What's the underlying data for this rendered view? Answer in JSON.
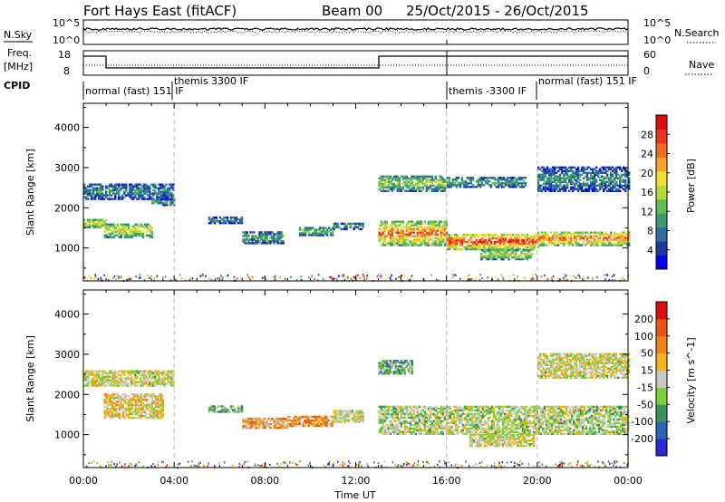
{
  "header": {
    "station": "Fort Hays East (fitACF)",
    "beam": "Beam 00",
    "dates": "25/Oct/2015 - 26/Oct/2015"
  },
  "panels": {
    "nsky": {
      "label": "N.Sky",
      "left_ticks": [
        "10^5",
        "10^0"
      ],
      "right_ticks": [
        "10^5",
        "10^0"
      ],
      "right_label": "N.Search"
    },
    "freq": {
      "label": "Freq.",
      "unit": "[MHz]",
      "left_ticks": [
        "18",
        "8"
      ],
      "right_ticks": [
        "60",
        "0"
      ],
      "right_label": "Nave"
    },
    "cpid": {
      "label": "CPID",
      "segments": [
        "normal (fast) 151 IF",
        "themis 3300 IF",
        "themis -3300 IF",
        "normal (fast) 151 IF"
      ]
    }
  },
  "chart_data": [
    {
      "type": "heatmap",
      "name": "power",
      "ylabel": "Slant Range [km]",
      "xlabel": "",
      "x_ticks": [
        "00:00",
        "04:00",
        "08:00",
        "12:00",
        "16:00",
        "20:00",
        "00:00"
      ],
      "x_range_hours": [
        0,
        24
      ],
      "y_ticks": [
        1000,
        2000,
        3000,
        4000
      ],
      "ylim": [
        180,
        4600
      ],
      "dashed_gridlines_hours": [
        4,
        16,
        20
      ],
      "colorbar": {
        "label": "Power [dB]",
        "ticks": [
          "4",
          "8",
          "12",
          "16",
          "20",
          "24",
          "28"
        ],
        "colors": [
          "#0000ff",
          "#1e3aa0",
          "#2d6e9e",
          "#3a9a72",
          "#5fbf50",
          "#b7d740",
          "#f2df30",
          "#f6a72a",
          "#ef6a24",
          "#e8341c",
          "#dd0d0d"
        ]
      },
      "echo_bands": [
        {
          "t0": 0.0,
          "t1": 1.0,
          "r0": 1500,
          "r1": 1700,
          "level": 0.65
        },
        {
          "t0": 0.9,
          "t1": 3.0,
          "r0": 1250,
          "r1": 1600,
          "level": 0.6
        },
        {
          "t0": 3.0,
          "t1": 4.0,
          "r0": 2050,
          "r1": 2200,
          "level": 0.4
        },
        {
          "t0": 0.0,
          "t1": 4.0,
          "r0": 2200,
          "r1": 2600,
          "level": 0.3
        },
        {
          "t0": 5.5,
          "t1": 7.0,
          "r0": 1600,
          "r1": 1750,
          "level": 0.3
        },
        {
          "t0": 7.0,
          "t1": 8.8,
          "r0": 1100,
          "r1": 1400,
          "level": 0.35
        },
        {
          "t0": 9.5,
          "t1": 11.0,
          "r0": 1300,
          "r1": 1500,
          "level": 0.45
        },
        {
          "t0": 11.0,
          "t1": 12.3,
          "r0": 1450,
          "r1": 1600,
          "level": 0.35
        },
        {
          "t0": 13.0,
          "t1": 16.0,
          "r0": 1050,
          "r1": 1650,
          "level": 0.8
        },
        {
          "t0": 16.0,
          "t1": 20.0,
          "r0": 950,
          "r1": 1350,
          "level": 0.9
        },
        {
          "t0": 17.5,
          "t1": 19.8,
          "r0": 700,
          "r1": 950,
          "level": 0.55
        },
        {
          "t0": 20.0,
          "t1": 24.0,
          "r0": 1050,
          "r1": 1400,
          "level": 0.8
        },
        {
          "t0": 13.0,
          "t1": 16.0,
          "r0": 2400,
          "r1": 2800,
          "level": 0.5
        },
        {
          "t0": 16.0,
          "t1": 19.5,
          "r0": 2500,
          "r1": 2750,
          "level": 0.35
        },
        {
          "t0": 20.0,
          "t1": 24.0,
          "r0": 2400,
          "r1": 3000,
          "level": 0.3
        }
      ]
    },
    {
      "type": "heatmap",
      "name": "velocity",
      "ylabel": "Slant Range [km]",
      "xlabel": "Time UT",
      "x_ticks": [
        "00:00",
        "04:00",
        "08:00",
        "12:00",
        "16:00",
        "20:00",
        "00:00"
      ],
      "x_range_hours": [
        0,
        24
      ],
      "y_ticks": [
        1000,
        2000,
        3000,
        4000
      ],
      "ylim": [
        180,
        4600
      ],
      "dashed_gridlines_hours": [
        4,
        16,
        20
      ],
      "colorbar": {
        "label": "Velocity [m s^-1]",
        "ticks": [
          "200",
          "100",
          "50",
          "15",
          "-15",
          "-50",
          "-100",
          "-200"
        ],
        "colors": [
          "#2a2ad0",
          "#2e62b2",
          "#3a8f60",
          "#7ccf3a",
          "#c8c8c8",
          "#f5b51a",
          "#f0821c",
          "#ec5317",
          "#dd0d0d"
        ]
      },
      "echo_bands": [
        {
          "t0": 0.0,
          "t1": 4.0,
          "r0": 2200,
          "r1": 2600,
          "level": 0.5
        },
        {
          "t0": 0.9,
          "t1": 3.5,
          "r0": 1400,
          "r1": 2000,
          "level": 0.55
        },
        {
          "t0": 5.5,
          "t1": 7.0,
          "r0": 1550,
          "r1": 1700,
          "level": 0.35
        },
        {
          "t0": 7.0,
          "t1": 9.0,
          "r0": 1150,
          "r1": 1400,
          "level": 0.65
        },
        {
          "t0": 9.0,
          "t1": 11.0,
          "r0": 1200,
          "r1": 1450,
          "level": 0.7
        },
        {
          "t0": 11.0,
          "t1": 12.3,
          "r0": 1300,
          "r1": 1600,
          "level": 0.5
        },
        {
          "t0": 13.0,
          "t1": 24.0,
          "r0": 1000,
          "r1": 1700,
          "level": 0.45
        },
        {
          "t0": 17.0,
          "t1": 19.8,
          "r0": 700,
          "r1": 1000,
          "level": 0.5
        },
        {
          "t0": 13.0,
          "t1": 14.5,
          "r0": 2500,
          "r1": 2850,
          "level": 0.35
        },
        {
          "t0": 20.0,
          "t1": 24.0,
          "r0": 2400,
          "r1": 3000,
          "level": 0.5
        }
      ]
    }
  ],
  "footer": {
    "xlabel": "Time UT"
  }
}
